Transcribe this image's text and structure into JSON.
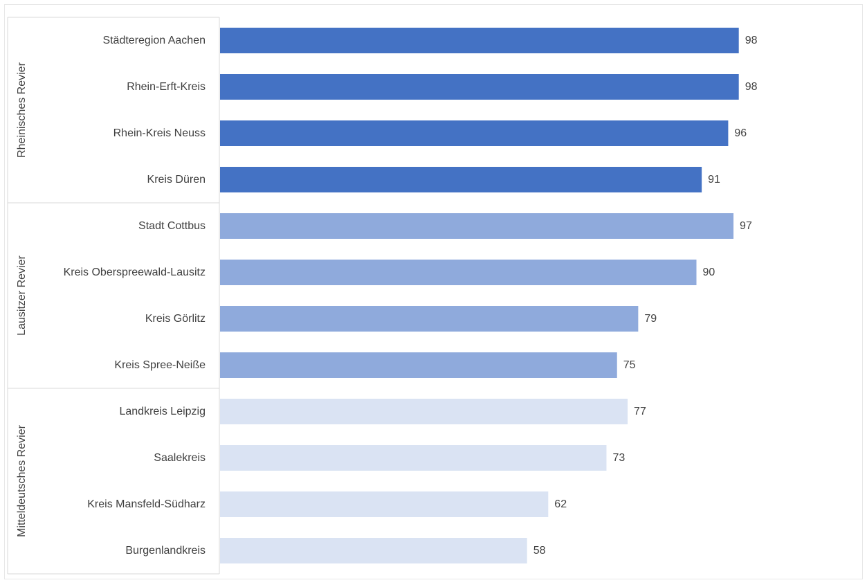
{
  "chart_data": {
    "type": "bar",
    "orientation": "horizontal",
    "grid": false,
    "legend": "none",
    "xlim": [
      0,
      100
    ],
    "groups": [
      {
        "name": "Rheinisches Revier",
        "color": "#4472C4",
        "categories": [
          "Städteregion Aachen",
          "Rhein-Erft-Kreis",
          "Rhein-Kreis Neuss",
          "Kreis Düren"
        ],
        "values": [
          98,
          98,
          96,
          91
        ]
      },
      {
        "name": "Lausitzer Revier",
        "color": "#8FAADC",
        "categories": [
          "Stadt Cottbus",
          "Kreis Oberspreewald-Lausitz",
          "Kreis Görlitz",
          "Kreis Spree-Neiße"
        ],
        "values": [
          97,
          90,
          79,
          75
        ]
      },
      {
        "name": "Mitteldeutsches Revier",
        "color": "#DAE3F3",
        "categories": [
          "Landkreis Leipzig",
          "Saalekreis",
          "Kreis Mansfeld-Südharz",
          "Burgenlandkreis"
        ],
        "values": [
          77,
          73,
          62,
          58
        ]
      }
    ]
  }
}
